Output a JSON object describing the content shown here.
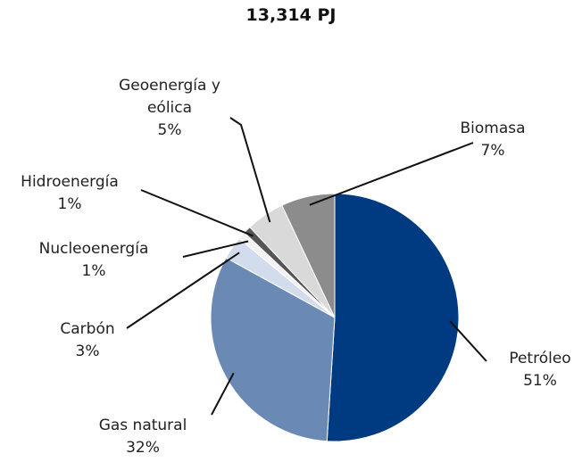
{
  "chart_data": {
    "type": "pie",
    "title": "13,314 PJ",
    "categories": [
      "Petróleo",
      "Gas natural",
      "Carbón",
      "Nucleoenergía",
      "Hidroenergía",
      "Geoenergía y eólica",
      "Biomasa"
    ],
    "values": [
      51,
      32,
      3,
      1,
      1,
      5,
      7
    ],
    "value_labels": [
      "51%",
      "32%",
      "3%",
      "1%",
      "1%",
      "5%",
      "7%"
    ],
    "colors": [
      "#003a80",
      "#6a8ab5",
      "#d3dced",
      "#f2f2f2",
      "#555555",
      "#d9d9d9",
      "#8c8c8c"
    ]
  }
}
